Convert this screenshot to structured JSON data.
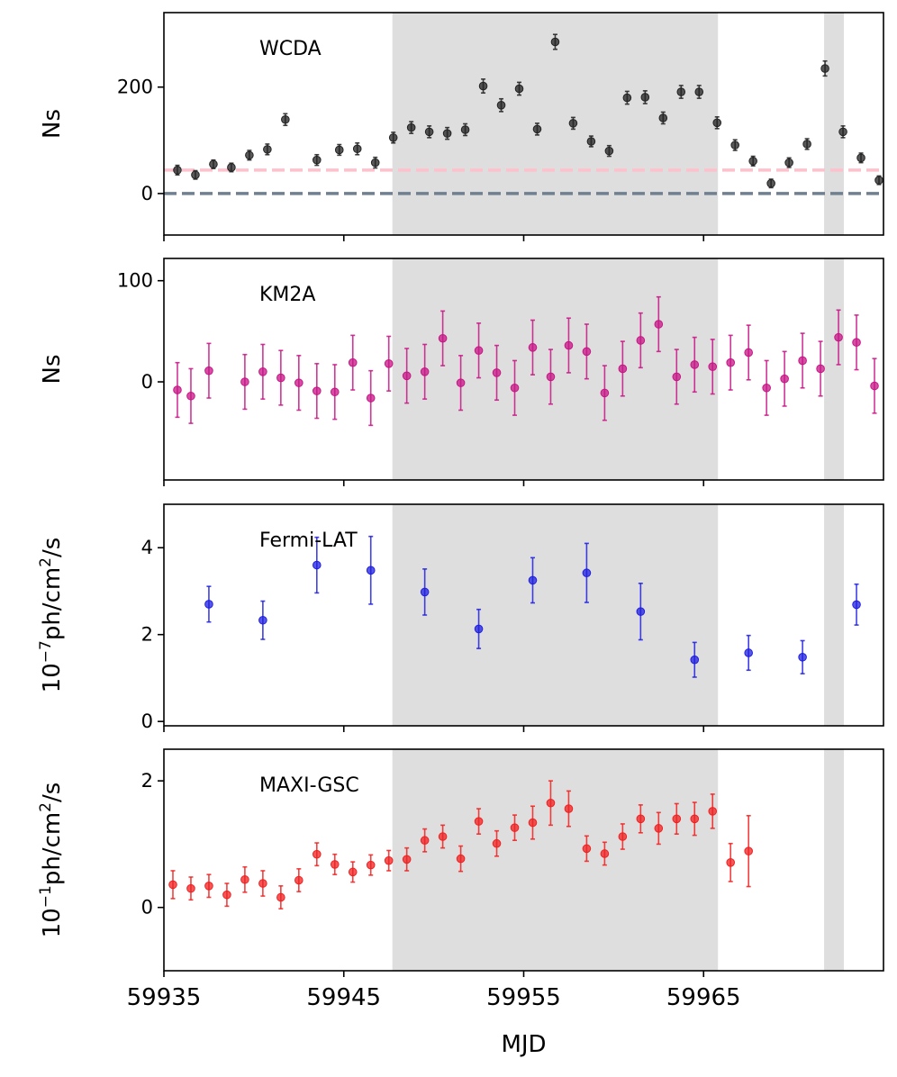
{
  "figure": {
    "xlabel": "MJD",
    "x_ticks": [
      59935,
      59945,
      59955,
      59965
    ],
    "x_tick_labels": [
      "59935",
      "59945",
      "59955",
      "59965"
    ],
    "xlim": [
      59935,
      59975
    ],
    "shaded_intervals": [
      [
        59947.7,
        59965.8
      ],
      [
        59971.7,
        59972.8
      ]
    ],
    "shade_color": "#dedede"
  },
  "chart_data": [
    {
      "type": "scatter",
      "name": "WCDA",
      "panel_label": "WCDA",
      "ylabel": "Ns",
      "ylabel_parts": [
        {
          "text": "Ns"
        }
      ],
      "ylim": [
        -78,
        340
      ],
      "yticks": [
        0,
        200
      ],
      "ytick_labels": [
        "0",
        "200"
      ],
      "color": "#222222",
      "hlines": [
        {
          "y": 44,
          "color": "#ffc0cb"
        },
        {
          "y": 0,
          "color": "#708090"
        }
      ],
      "x": [
        59935.75,
        59936.75,
        59937.75,
        59938.75,
        59939.75,
        59940.75,
        59941.75,
        59943.5,
        59944.75,
        59945.75,
        59946.75,
        59947.75,
        59948.75,
        59949.75,
        59950.75,
        59951.75,
        59952.75,
        59953.75,
        59954.75,
        59955.75,
        59956.75,
        59957.75,
        59958.75,
        59959.75,
        59960.75,
        59961.75,
        59962.75,
        59963.75,
        59964.75,
        59965.75,
        59966.75,
        59967.75,
        59968.75,
        59969.75,
        59970.75,
        59971.75,
        59972.75,
        59973.75,
        59974.75
      ],
      "y": [
        44,
        35,
        55,
        49,
        72,
        83,
        139,
        63,
        82,
        84,
        58,
        105,
        124,
        116,
        113,
        120,
        202,
        166,
        197,
        121,
        285,
        132,
        98,
        80,
        180,
        181,
        142,
        191,
        191,
        133,
        91,
        61,
        19,
        58,
        93,
        235,
        116,
        67,
        25
      ],
      "err": [
        9,
        8,
        8,
        8,
        9,
        10,
        11,
        10,
        10,
        11,
        10,
        10,
        11,
        11,
        11,
        11,
        13,
        12,
        12,
        11,
        14,
        11,
        10,
        10,
        12,
        12,
        11,
        12,
        12,
        11,
        10,
        9,
        8,
        9,
        10,
        14,
        11,
        9,
        8
      ]
    },
    {
      "type": "scatter",
      "name": "KM2A",
      "panel_label": "KM2A",
      "ylabel": "Ns",
      "ylabel_parts": [
        {
          "text": "Ns"
        }
      ],
      "ylim": [
        -97,
        122
      ],
      "yticks": [
        0,
        100
      ],
      "ytick_labels": [
        "0",
        "100"
      ],
      "color": "#c71585",
      "hlines": [],
      "x": [
        59935.75,
        59936.5,
        59937.5,
        59939.5,
        59940.5,
        59941.5,
        59942.5,
        59943.5,
        59944.5,
        59945.5,
        59946.5,
        59947.5,
        59948.5,
        59949.5,
        59950.5,
        59951.5,
        59952.5,
        59953.5,
        59954.5,
        59955.5,
        59956.5,
        59957.5,
        59958.5,
        59959.5,
        59960.5,
        59961.5,
        59962.5,
        59963.5,
        59964.5,
        59965.5,
        59966.5,
        59967.5,
        59968.5,
        59969.5,
        59970.5,
        59971.5,
        59972.5,
        59973.5,
        59974.5
      ],
      "y": [
        -8,
        -14,
        11,
        0,
        10,
        4,
        -1,
        -9,
        -10,
        19,
        -16,
        18,
        6,
        10,
        43,
        -1,
        31,
        9,
        -6,
        34,
        5,
        36,
        30,
        -11,
        13,
        41,
        57,
        5,
        17,
        15,
        19,
        29,
        -6,
        3,
        21,
        13,
        44,
        39,
        -4
      ],
      "err": [
        27,
        27,
        27,
        27,
        27,
        27,
        27,
        27,
        27,
        27,
        27,
        27,
        27,
        27,
        27,
        27,
        27,
        27,
        27,
        27,
        27,
        27,
        27,
        27,
        27,
        27,
        27,
        27,
        27,
        27,
        27,
        27,
        27,
        27,
        27,
        27,
        27,
        27,
        27
      ]
    },
    {
      "type": "scatter",
      "name": "Fermi-LAT",
      "panel_label": "Fermi-LAT",
      "ylabel": "10^-7 ph/cm^2/s",
      "ylabel_parts": [
        {
          "text": "10"
        },
        {
          "text": "−7",
          "sup": true
        },
        {
          "text": "ph/cm"
        },
        {
          "text": "2",
          "sup": true
        },
        {
          "text": "/s"
        }
      ],
      "ylim": [
        -0.1,
        5.0
      ],
      "yticks": [
        0,
        2,
        4
      ],
      "ytick_labels": [
        "0",
        "2",
        "4"
      ],
      "color": "#1f1fe0",
      "hlines": [],
      "x": [
        59937.5,
        59940.5,
        59943.5,
        59946.5,
        59949.5,
        59952.5,
        59955.5,
        59958.5,
        59961.5,
        59964.5,
        59967.5,
        59970.5,
        59973.5
      ],
      "y": [
        2.7,
        2.33,
        3.6,
        3.48,
        2.98,
        2.13,
        3.25,
        3.42,
        2.53,
        1.42,
        1.58,
        1.48,
        2.69
      ],
      "err": [
        0.41,
        0.44,
        0.64,
        0.78,
        0.53,
        0.45,
        0.52,
        0.68,
        0.65,
        0.4,
        0.4,
        0.38,
        0.47
      ]
    },
    {
      "type": "scatter",
      "name": "MAXI-GSC",
      "panel_label": "MAXI-GSC",
      "ylabel": "10^-1 ph/cm^2/s",
      "ylabel_parts": [
        {
          "text": "10"
        },
        {
          "text": "−1",
          "sup": true
        },
        {
          "text": "ph/cm"
        },
        {
          "text": "2",
          "sup": true
        },
        {
          "text": "/s"
        }
      ],
      "ylim": [
        -1.0,
        2.5
      ],
      "yticks": [
        0,
        2
      ],
      "ytick_labels": [
        "0",
        "2"
      ],
      "color": "#f02020",
      "hlines": [],
      "x": [
        59935.5,
        59936.5,
        59937.5,
        59938.5,
        59939.5,
        59940.5,
        59941.5,
        59942.5,
        59943.5,
        59944.5,
        59945.5,
        59946.5,
        59947.5,
        59948.5,
        59949.5,
        59950.5,
        59951.5,
        59952.5,
        59953.5,
        59954.5,
        59955.5,
        59956.5,
        59957.5,
        59958.5,
        59959.5,
        59960.5,
        59961.5,
        59962.5,
        59963.5,
        59964.5,
        59965.5,
        59966.5,
        59967.5
      ],
      "y": [
        0.36,
        0.3,
        0.34,
        0.2,
        0.44,
        0.38,
        0.16,
        0.43,
        0.84,
        0.68,
        0.56,
        0.67,
        0.74,
        0.76,
        1.06,
        1.12,
        0.77,
        1.36,
        1.01,
        1.26,
        1.34,
        1.65,
        1.56,
        0.93,
        0.85,
        1.12,
        1.4,
        1.25,
        1.4,
        1.4,
        1.52,
        0.71,
        0.89
      ],
      "err": [
        0.22,
        0.18,
        0.18,
        0.18,
        0.2,
        0.2,
        0.18,
        0.18,
        0.18,
        0.16,
        0.16,
        0.16,
        0.16,
        0.18,
        0.18,
        0.18,
        0.2,
        0.2,
        0.2,
        0.2,
        0.26,
        0.35,
        0.28,
        0.2,
        0.18,
        0.2,
        0.22,
        0.25,
        0.24,
        0.26,
        0.27,
        0.3,
        0.56
      ]
    }
  ]
}
